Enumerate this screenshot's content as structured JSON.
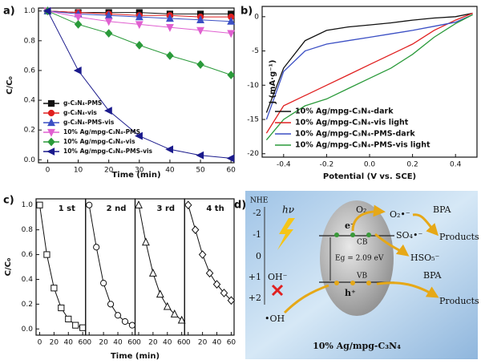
{
  "chart_data": [
    {
      "type": "line",
      "panel_label": "a)",
      "xlabel": "Time (min)",
      "ylabel": "C/C₀",
      "x": [
        0,
        10,
        20,
        30,
        40,
        50,
        60
      ],
      "series": [
        {
          "name": "g-C₃N₄-PMS",
          "color": "#111111",
          "marker": "square",
          "values": [
            1.0,
            0.99,
            0.99,
            0.99,
            0.98,
            0.98,
            0.98
          ]
        },
        {
          "name": "g-C₃N₄-vis",
          "color": "#e02020",
          "marker": "circle",
          "values": [
            1.0,
            0.99,
            0.98,
            0.97,
            0.97,
            0.96,
            0.96
          ]
        },
        {
          "name": "g-C₃N₄-PMS-vis",
          "color": "#3b4fc4",
          "marker": "triangle",
          "values": [
            1.0,
            0.98,
            0.97,
            0.96,
            0.95,
            0.94,
            0.93
          ]
        },
        {
          "name": "10% Ag/mpg-C₃N₄-PMS",
          "color": "#e060d0",
          "marker": "triangle-down",
          "values": [
            1.0,
            0.96,
            0.93,
            0.91,
            0.89,
            0.87,
            0.85
          ]
        },
        {
          "name": "10% Ag/mpg-C₃N₄-vis",
          "color": "#2a9a3a",
          "marker": "diamond",
          "values": [
            1.0,
            0.91,
            0.85,
            0.77,
            0.7,
            0.64,
            0.57
          ]
        },
        {
          "name": "10% Ag/mpg-C₃N₄-PMS-vis",
          "color": "#1a1a8c",
          "marker": "triangle-left",
          "values": [
            1.0,
            0.6,
            0.33,
            0.16,
            0.07,
            0.03,
            0.01
          ]
        }
      ],
      "xlim": [
        -3,
        61
      ],
      "ylim": [
        -0.02,
        1.02
      ],
      "xticks": [
        0,
        10,
        20,
        30,
        40,
        50,
        60
      ],
      "yticks": [
        {
          "value": 0,
          "label": "0.0"
        },
        0.2,
        0.4,
        0.6,
        0.8,
        {
          "value": 1,
          "label": "1.0"
        }
      ],
      "markers": true,
      "legend": "lower left",
      "facets": false
    },
    {
      "type": "line",
      "panel_label": "b)",
      "xlabel": "Potential (V vs. SCE)",
      "ylabel": "j (mA·g⁻¹)",
      "x": [
        -0.48,
        -0.4,
        -0.3,
        -0.2,
        -0.1,
        0,
        0.1,
        0.2,
        0.3,
        0.4,
        0.48
      ],
      "series": [
        {
          "name": "10% Ag/mpg-C₃N₄-dark",
          "color": "#111111",
          "values": [
            -14,
            -7.5,
            -3.5,
            -2,
            -1.5,
            -1.2,
            -0.9,
            -0.5,
            -0.2,
            0,
            0.5
          ]
        },
        {
          "name": "10% Ag/mpg-C₃N₄-vis light",
          "color": "#e02020",
          "values": [
            -17,
            -13,
            -11.5,
            -10,
            -8.5,
            -7,
            -5.5,
            -4,
            -2,
            -0.5,
            0.5
          ]
        },
        {
          "name": "10% Ag/mpg-C₃N₄-PMS-dark",
          "color": "#3b4fc4",
          "values": [
            -15,
            -8,
            -5,
            -4,
            -3.5,
            -3,
            -2.5,
            -2,
            -1.4,
            -0.8,
            0.3
          ]
        },
        {
          "name": "10% Ag/mpg-C₃N₄-PMS-vis light",
          "color": "#2a9a3a",
          "values": [
            -18,
            -15,
            -13,
            -12,
            -10.5,
            -9,
            -7.5,
            -5.5,
            -3,
            -1,
            0.3
          ]
        }
      ],
      "xlim": [
        -0.5,
        0.5
      ],
      "ylim": [
        -20.5,
        1.5
      ],
      "xticks": [
        -0.4,
        -0.2,
        {
          "value": 0,
          "label": "0.0"
        },
        0.2,
        0.4
      ],
      "yticks": [
        0,
        -5,
        -10,
        -15,
        -20
      ],
      "markers": false,
      "legend": "lower right",
      "facets": false
    },
    {
      "type": "line",
      "panel_label": "c)",
      "xlabel": "Time (min)",
      "ylabel": "C/C₀",
      "x": [
        0,
        10,
        20,
        30,
        40,
        50,
        60
      ],
      "series": [
        {
          "name": "1 st",
          "color": "#111111",
          "marker": "square",
          "values": [
            1.0,
            0.6,
            0.33,
            0.17,
            0.08,
            0.03,
            0.01
          ]
        },
        {
          "name": "2 nd",
          "color": "#111111",
          "marker": "circle",
          "values": [
            1.0,
            0.66,
            0.37,
            0.2,
            0.11,
            0.06,
            0.03
          ]
        },
        {
          "name": "3 rd",
          "color": "#111111",
          "marker": "triangle",
          "values": [
            1.0,
            0.7,
            0.45,
            0.28,
            0.18,
            0.12,
            0.07
          ]
        },
        {
          "name": "4 th",
          "color": "#111111",
          "marker": "diamond",
          "values": [
            1.0,
            0.8,
            0.6,
            0.45,
            0.36,
            0.29,
            0.23
          ]
        }
      ],
      "xlim": [
        -5,
        64
      ],
      "ylim": [
        -0.05,
        1.05
      ],
      "xticks": [
        0,
        20,
        40,
        60
      ],
      "yticks": [
        {
          "value": 0,
          "label": "0.0"
        },
        0.2,
        0.4,
        0.6,
        0.8,
        {
          "value": 1,
          "label": "1.0"
        }
      ],
      "markers": true,
      "legend": "none",
      "facets": true
    }
  ],
  "diagram": {
    "panel_label": "d)",
    "axis_title": "NHE",
    "axis_ticks": [
      "-2",
      "-1",
      "0",
      "+1",
      "+2"
    ],
    "light": "hν",
    "o2": "O₂",
    "superoxide": "O₂•⁻",
    "bpa_top": "BPA",
    "products_top": "Products",
    "sulfate": "SO₄•⁻",
    "hso5": "HSO₅⁻",
    "electron": "e⁻",
    "cb": "CB",
    "gap": "Eg = 2.09 eV",
    "vb": "VB",
    "hole": "h⁺",
    "oh_minus": "OH⁻",
    "oh_radical": "•OH",
    "bpa_bottom": "BPA",
    "products_bottom": "Products",
    "catalyst": "10% Ag/mpg-C₃N₄"
  }
}
